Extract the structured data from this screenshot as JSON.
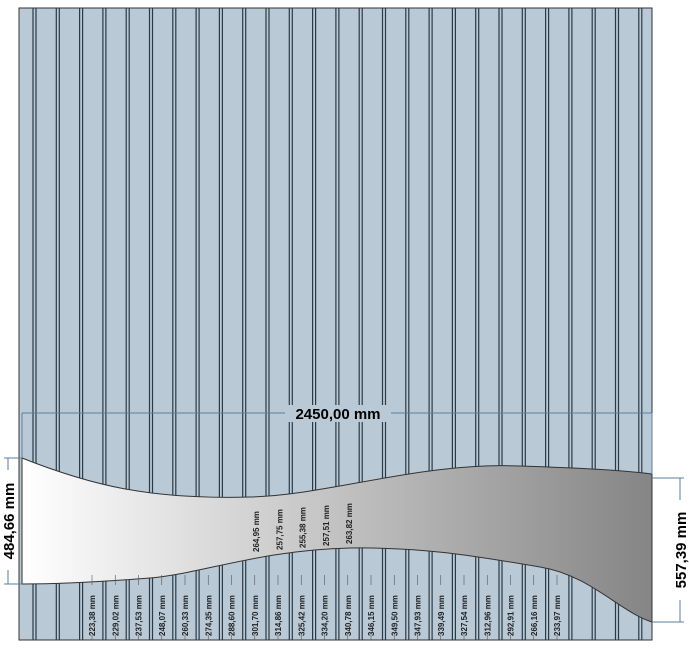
{
  "dimensions": {
    "width": "2450,00 mm",
    "left_height": "484,66 mm",
    "right_height": "557,39 mm"
  },
  "bottom_labels": [
    "223,38 mm",
    "229,02 mm",
    "237,53 mm",
    "248,07 mm",
    "260,33 mm",
    "274,35 mm",
    "288,60 mm",
    "301,70 mm",
    "314,86 mm",
    "325,42 mm",
    "334,20 mm",
    "340,78 mm",
    "346,15 mm",
    "349,50 mm",
    "347,93 mm",
    "339,49 mm",
    "327,54 mm",
    "312,96 mm",
    "292,91 mm",
    "266,16 mm",
    "233,97 mm"
  ],
  "inner_labels": [
    "264,95 mm",
    "257,75 mm",
    "255,38 mm",
    "257,51 mm",
    "263,82 mm"
  ]
}
